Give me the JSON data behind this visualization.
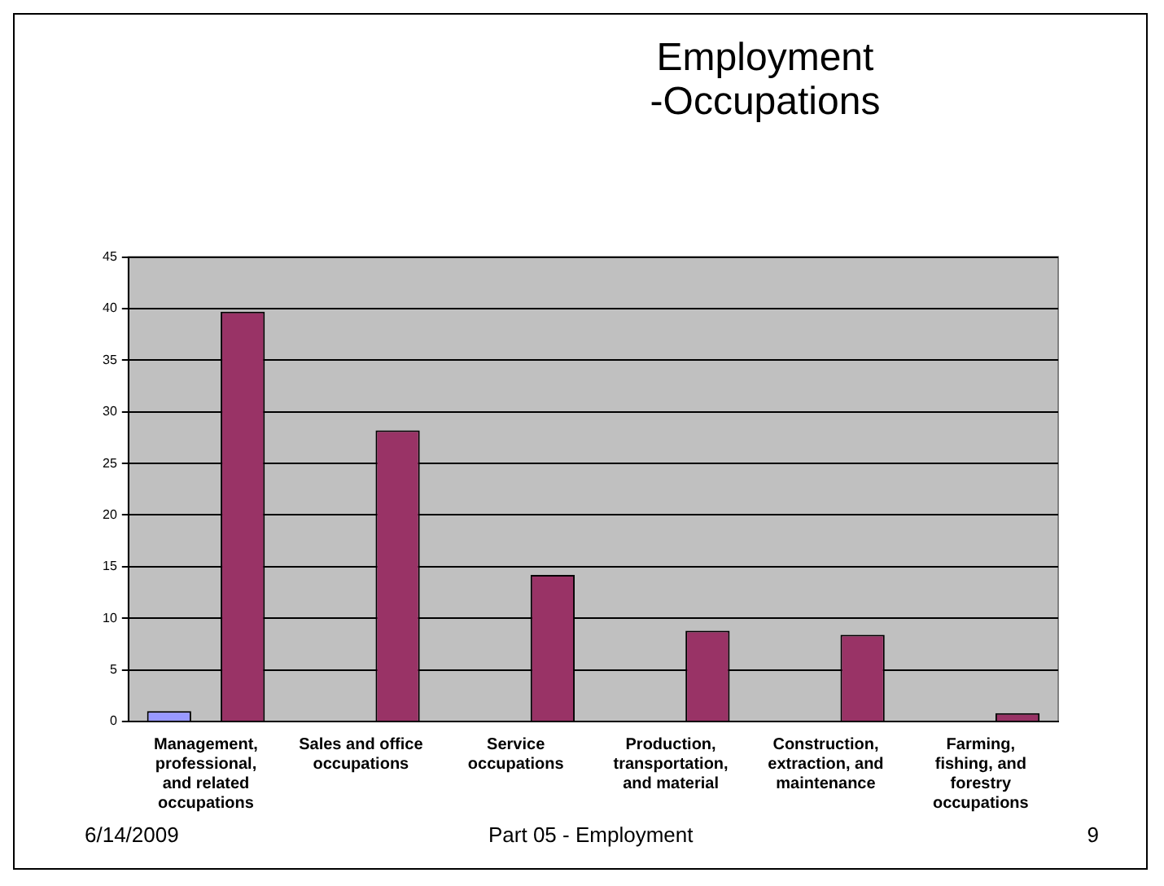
{
  "chart_data": {
    "type": "bar",
    "title": "Employment\n-Occupations",
    "categories": [
      "Management, professional, and related occupations",
      "Sales and office occupations",
      "Service occupations",
      "Production, transportation, and material",
      "Construction, extraction, and maintenance",
      "Farming, fishing, and forestry occupations"
    ],
    "series": [
      {
        "color": "#9999ff",
        "values": [
          1.0,
          0,
          0,
          0,
          0,
          0
        ]
      },
      {
        "color": "#993366",
        "values": [
          39.7,
          28.2,
          14.2,
          8.8,
          8.4,
          0.8
        ]
      }
    ],
    "ylim": [
      0,
      45
    ],
    "yticks": [
      0,
      5,
      10,
      15,
      20,
      25,
      30,
      35,
      40,
      45
    ],
    "grid": "y",
    "legend": false,
    "annotations": [
      "6/14/2009",
      "Part 05 - Employment",
      "9"
    ]
  }
}
